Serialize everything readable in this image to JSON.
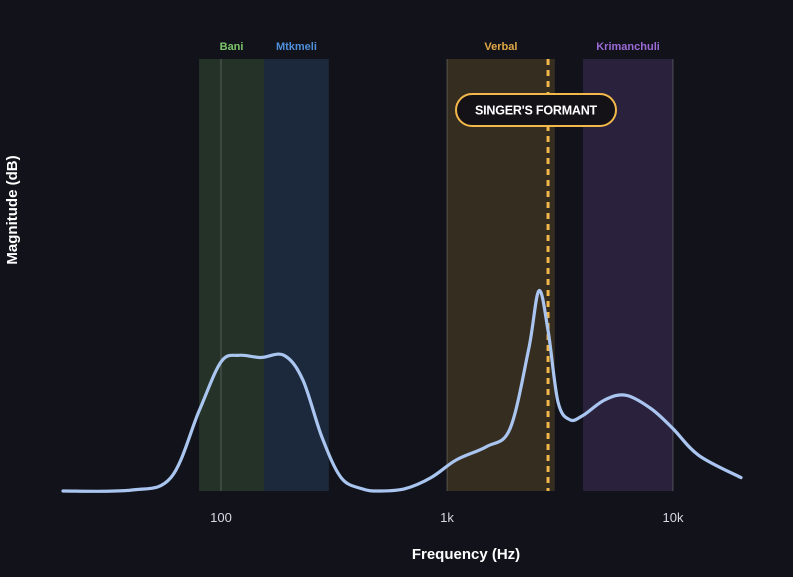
{
  "chart_data": {
    "type": "line",
    "title": "",
    "xlabel": "Frequency (Hz)",
    "ylabel": "Magnitude (dB)",
    "x_scale": "log",
    "xlim": [
      20,
      20000
    ],
    "x_ticks": [
      {
        "value": 100,
        "label": "100"
      },
      {
        "value": 1000,
        "label": "1k"
      },
      {
        "value": 10000,
        "label": "10k"
      }
    ],
    "grid": false,
    "legend": "none",
    "bands": [
      {
        "name": "Bani",
        "x_range": [
          80,
          155
        ],
        "color": "#7cc46b"
      },
      {
        "name": "Mtkmeli",
        "x_range": [
          155,
          300
        ],
        "color": "#4f8ed8"
      },
      {
        "name": "Verbal",
        "x_range": [
          1000,
          3000
        ],
        "color": "#e0a845"
      },
      {
        "name": "Krimanchuli",
        "x_range": [
          4000,
          10000
        ],
        "color": "#9b6ad6"
      }
    ],
    "annotations": [
      {
        "text": "SINGER'S FORMANT",
        "x": 2800,
        "style": "dashed vertical line",
        "color": "#f2b84a"
      }
    ],
    "series": [
      {
        "color": "#aac6f0",
        "points": [
          {
            "x": 20,
            "y": 0
          },
          {
            "x": 40,
            "y": 0.2
          },
          {
            "x": 60,
            "y": 3
          },
          {
            "x": 80,
            "y": 18
          },
          {
            "x": 100,
            "y": 29
          },
          {
            "x": 120,
            "y": 30.5
          },
          {
            "x": 150,
            "y": 30
          },
          {
            "x": 190,
            "y": 30.5
          },
          {
            "x": 230,
            "y": 25
          },
          {
            "x": 280,
            "y": 12
          },
          {
            "x": 340,
            "y": 3
          },
          {
            "x": 420,
            "y": 0.5
          },
          {
            "x": 500,
            "y": 0
          },
          {
            "x": 650,
            "y": 0.5
          },
          {
            "x": 850,
            "y": 3
          },
          {
            "x": 1100,
            "y": 7
          },
          {
            "x": 1500,
            "y": 10
          },
          {
            "x": 1900,
            "y": 14
          },
          {
            "x": 2300,
            "y": 32
          },
          {
            "x": 2550,
            "y": 45
          },
          {
            "x": 2800,
            "y": 36
          },
          {
            "x": 3100,
            "y": 20
          },
          {
            "x": 3500,
            "y": 16
          },
          {
            "x": 4000,
            "y": 17
          },
          {
            "x": 5000,
            "y": 20.5
          },
          {
            "x": 6200,
            "y": 21.5
          },
          {
            "x": 8000,
            "y": 18.5
          },
          {
            "x": 10000,
            "y": 14
          },
          {
            "x": 13000,
            "y": 8
          },
          {
            "x": 20000,
            "y": 3
          }
        ]
      }
    ],
    "ylim": [
      0,
      100
    ]
  }
}
